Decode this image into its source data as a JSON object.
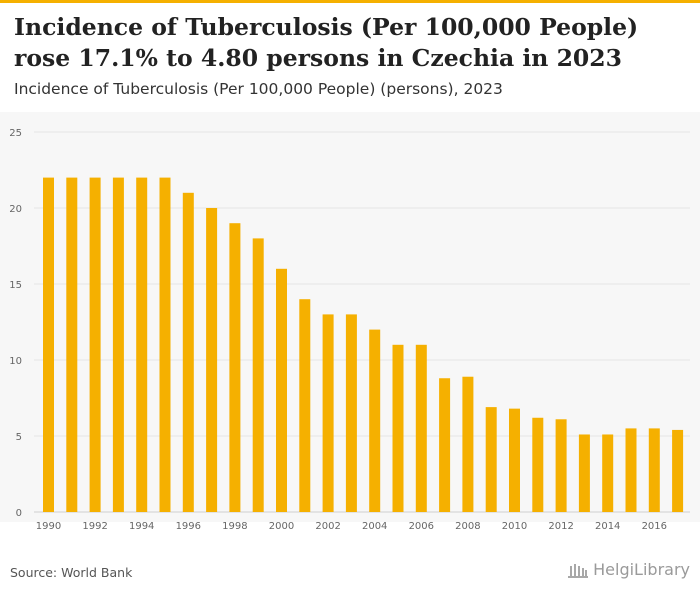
{
  "header": {
    "title": "Incidence of Tuberculosis (Per 100,000 People) rose 17.1% to 4.80 persons in Czechia in 2023",
    "subtitle": "Incidence of Tuberculosis (Per 100,000 People) (persons), 2023"
  },
  "footer": {
    "source": "Source: World Bank",
    "logo_text": "HelgiLibrary",
    "logo_icon": "library-columns-icon"
  },
  "colors": {
    "bar": "#F5B000",
    "grid": "#E4E4E4",
    "plot_background": "#F7F7F7",
    "accent": "#F5B000"
  },
  "chart_data": {
    "type": "bar",
    "title": "Incidence of Tuberculosis (Per 100,000 People) (persons), 2023",
    "xlabel": "",
    "ylabel": "",
    "ylim": [
      0,
      25
    ],
    "yticks": [
      0,
      5,
      10,
      15,
      20,
      25
    ],
    "grid": true,
    "categories": [
      "1990",
      "1991",
      "1992",
      "1993",
      "1994",
      "1995",
      "1996",
      "1997",
      "1998",
      "1999",
      "2000",
      "2001",
      "2002",
      "2003",
      "2004",
      "2005",
      "2006",
      "2007",
      "2008",
      "2009",
      "2010",
      "2011",
      "2012",
      "2013",
      "2014",
      "2015",
      "2016",
      "2017"
    ],
    "xtick_labels": [
      "1990",
      "1992",
      "1994",
      "1996",
      "1998",
      "2000",
      "2002",
      "2004",
      "2006",
      "2008",
      "2010",
      "2012",
      "2014",
      "2016"
    ],
    "values": [
      22,
      22,
      22,
      22,
      22,
      22,
      21,
      20,
      19,
      18,
      16,
      14,
      13,
      13,
      12,
      11,
      11,
      8.8,
      8.9,
      6.9,
      6.8,
      6.2,
      6.1,
      5.1,
      5.1,
      5.5,
      5.5,
      5.4
    ]
  }
}
